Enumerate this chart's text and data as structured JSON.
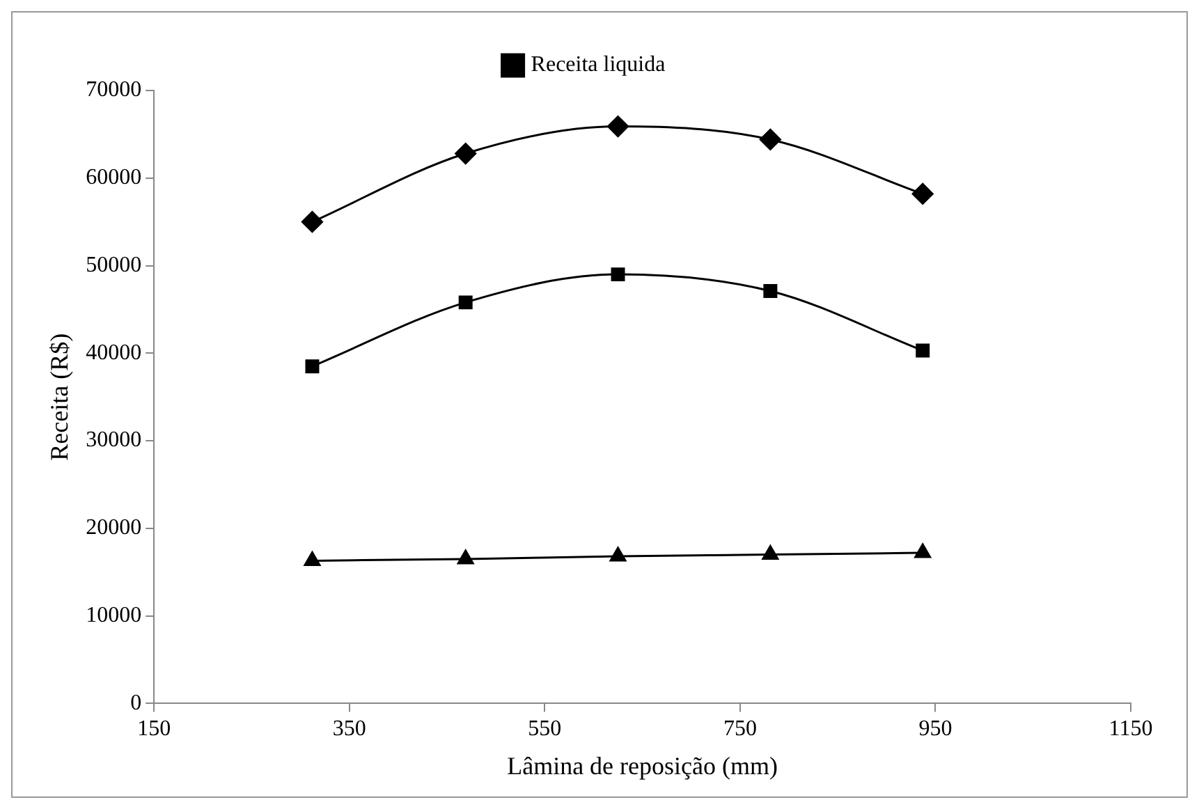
{
  "chart_data": {
    "type": "line",
    "xlabel": "Lâmina de reposição (mm)",
    "ylabel": "Receita (R$)",
    "x": [
      312,
      469,
      625,
      781,
      937
    ],
    "series": [
      {
        "color": "#000000",
        "marker": "diamond",
        "values": [
          55000,
          62800,
          65900,
          64400,
          58200
        ]
      },
      {
        "name": "Receita liquida",
        "color": "#000000",
        "marker": "square",
        "values": [
          38500,
          45800,
          49000,
          47100,
          40300
        ]
      },
      {
        "color": "#000000",
        "marker": "triangle",
        "values": [
          16300,
          16500,
          16800,
          17000,
          17200
        ]
      }
    ],
    "xlim": [
      150,
      1150
    ],
    "xticks": [
      150,
      350,
      550,
      750,
      950,
      1150
    ],
    "ylim": [
      0,
      70000
    ],
    "yticks": [
      0,
      10000,
      20000,
      30000,
      40000,
      50000,
      60000,
      70000
    ],
    "grid": false,
    "legend": "top",
    "line_style": "solid"
  }
}
